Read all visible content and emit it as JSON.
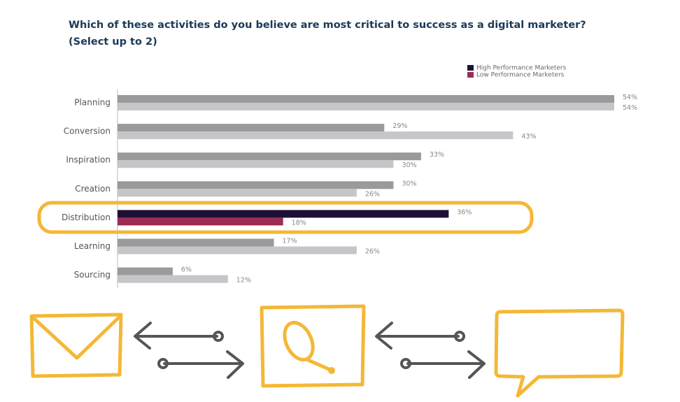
{
  "chart_data": {
    "type": "bar",
    "orientation": "horizontal",
    "title": "Which of these activities do you believe are most critical to success as a digital marketer?",
    "subtitle": "(Select up to 2)",
    "categories": [
      "Planning",
      "Conversion",
      "Inspiration",
      "Creation",
      "Distribution",
      "Learning",
      "Sourcing"
    ],
    "series": [
      {
        "name": "High Performance Marketers",
        "color": "#1e1035",
        "bar_colors": [
          "#9a9a9a",
          "#9a9a9a",
          "#9a9a9a",
          "#9a9a9a",
          "#1e1035",
          "#9a9a9a",
          "#9a9a9a"
        ],
        "values": [
          54,
          29,
          33,
          30,
          36,
          17,
          6
        ],
        "value_labels": [
          "54%",
          "29%",
          "33%",
          "30%",
          "36%",
          "17%",
          "6%"
        ]
      },
      {
        "name": "Low Performance Marketers",
        "color": "#9c2b55",
        "bar_colors": [
          "#c6c6ca",
          "#c6c6ca",
          "#c6c6ca",
          "#c6c6ca",
          "#9c2b55",
          "#c6c6ca",
          "#c6c6ca"
        ],
        "values": [
          54,
          43,
          30,
          26,
          18,
          26,
          12
        ],
        "value_labels": [
          "54%",
          "43%",
          "30%",
          "26%",
          "18%",
          "26%",
          "12%"
        ]
      }
    ],
    "legend": "top-right"
  }
}
